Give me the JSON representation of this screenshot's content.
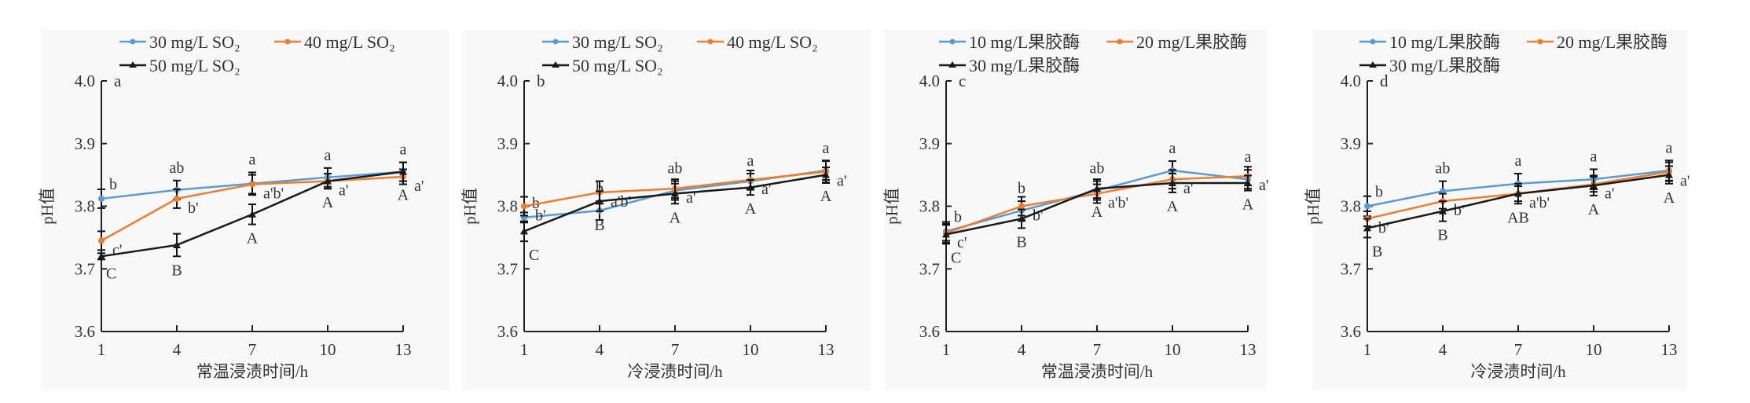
{
  "colors": {
    "series1": "#5b9bd5",
    "series2": "#ed7d31",
    "series3": "#1a1a1a",
    "axis": "#222222",
    "panel_bg": "#f8f8f8"
  },
  "chart_data": [
    {
      "type": "line",
      "panel_label": "a",
      "xlabel": "常温浸渍时间/h",
      "ylabel": "pH值",
      "x": [
        1,
        4,
        7,
        10,
        13
      ],
      "xticks": [
        "1",
        "4",
        "7",
        "10",
        "13"
      ],
      "yticks": [
        "3.6",
        "3.7",
        "3.8",
        "3.9",
        "4.0"
      ],
      "ylim": [
        3.6,
        4.0
      ],
      "legend": "top",
      "series": [
        {
          "name": "30 mg/L SO₂",
          "values": [
            3.812,
            3.826,
            3.836,
            3.846,
            3.855
          ],
          "error": [
            0.015,
            0.015,
            0.018,
            0.015,
            0.015
          ],
          "labels": [
            "b",
            "ab",
            "a",
            "a",
            "a"
          ]
        },
        {
          "name": "40 mg/L SO₂",
          "values": [
            3.745,
            3.812,
            3.835,
            3.84,
            3.847
          ],
          "error": [
            0.015,
            0.015,
            0.015,
            0.012,
            0.012
          ],
          "labels": [
            "c'",
            "b'",
            "a'b'",
            "a'",
            "a'"
          ]
        },
        {
          "name": "50 mg/L SO₂",
          "values": [
            3.72,
            3.738,
            3.787,
            3.84,
            3.855
          ],
          "error": [
            0.005,
            0.018,
            0.016,
            0.012,
            0.015
          ],
          "labels": [
            "C",
            "B",
            "A",
            "A",
            "A"
          ]
        }
      ]
    },
    {
      "type": "line",
      "panel_label": "b",
      "xlabel": "冷浸渍时间/h",
      "ylabel": "pH值",
      "x": [
        1,
        4,
        7,
        10,
        13
      ],
      "xticks": [
        "1",
        "4",
        "7",
        "10",
        "13"
      ],
      "yticks": [
        "3.6",
        "3.7",
        "3.8",
        "3.9",
        "4.0"
      ],
      "ylim": [
        3.6,
        4.0
      ],
      "legend": "top",
      "series": [
        {
          "name": "30 mg/L SO₂",
          "values": [
            3.782,
            3.793,
            3.825,
            3.84,
            3.857
          ],
          "error": [
            0.008,
            0.015,
            0.015,
            0.012,
            0.015
          ],
          "labels": [
            "b",
            "b",
            "ab",
            "a",
            "a"
          ]
        },
        {
          "name": "40 mg/L SO₂",
          "values": [
            3.8,
            3.822,
            3.828,
            3.842,
            3.855
          ],
          "error": [
            0.015,
            0.018,
            0.015,
            0.015,
            0.018
          ],
          "labels": [
            "b'",
            "a'b'",
            "a'",
            "a'",
            "a'"
          ]
        },
        {
          "name": "50 mg/L SO₂",
          "values": [
            3.76,
            3.808,
            3.82,
            3.83,
            3.85
          ],
          "error": [
            0.016,
            0.016,
            0.016,
            0.012,
            0.012
          ],
          "labels": [
            "C",
            "B",
            "A",
            "A",
            "A"
          ]
        }
      ]
    },
    {
      "type": "line",
      "panel_label": "c",
      "xlabel": "常温浸渍时间/h",
      "ylabel": "pH值",
      "x": [
        1,
        4,
        7,
        10,
        13
      ],
      "xticks": [
        "1",
        "4",
        "7",
        "10",
        "13"
      ],
      "yticks": [
        "3.6",
        "3.7",
        "3.8",
        "3.9",
        "4.0"
      ],
      "ylim": [
        3.6,
        4.0
      ],
      "legend": "top",
      "series": [
        {
          "name": "10 mg/L果胶酶",
          "values": [
            3.76,
            3.793,
            3.825,
            3.857,
            3.843
          ],
          "error": [
            0.015,
            0.015,
            0.015,
            0.015,
            0.015
          ],
          "labels": [
            "b",
            "b",
            "ab",
            "a",
            "a"
          ]
        },
        {
          "name": "20 mg/L果胶酶",
          "values": [
            3.757,
            3.8,
            3.82,
            3.843,
            3.848
          ],
          "error": [
            0.015,
            0.015,
            0.015,
            0.015,
            0.015
          ],
          "labels": [
            "c'",
            "b'",
            "a'b'",
            "a'",
            "a'"
          ]
        },
        {
          "name": "30 mg/L果胶酶",
          "values": [
            3.755,
            3.78,
            3.828,
            3.837,
            3.837
          ],
          "error": [
            0.015,
            0.015,
            0.015,
            0.015,
            0.012
          ],
          "labels": [
            "C",
            "B",
            "A",
            "A",
            "A"
          ]
        }
      ]
    },
    {
      "type": "line",
      "panel_label": "d",
      "xlabel": "冷浸渍时间/h",
      "ylabel": "pH值",
      "x": [
        1,
        4,
        7,
        10,
        13
      ],
      "xticks": [
        "1",
        "4",
        "7",
        "10",
        "13"
      ],
      "yticks": [
        "3.6",
        "3.7",
        "3.8",
        "3.9",
        "4.0"
      ],
      "ylim": [
        3.6,
        4.0
      ],
      "legend": "top",
      "series": [
        {
          "name": "10 mg/L果胶酶",
          "values": [
            3.8,
            3.824,
            3.836,
            3.843,
            3.857
          ],
          "error": [
            0.016,
            0.016,
            0.016,
            0.016,
            0.016
          ],
          "labels": [
            "b",
            "ab",
            "a",
            "a",
            "a"
          ]
        },
        {
          "name": "20 mg/L果胶酶",
          "values": [
            3.78,
            3.808,
            3.82,
            3.835,
            3.855
          ],
          "error": [
            0.012,
            0.012,
            0.012,
            0.012,
            0.015
          ],
          "labels": [
            "b'",
            "b'",
            "a'b'",
            "a'",
            "a'"
          ]
        },
        {
          "name": "30 mg/L果胶酶",
          "values": [
            3.765,
            3.792,
            3.82,
            3.833,
            3.85
          ],
          "error": [
            0.015,
            0.016,
            0.016,
            0.016,
            0.014
          ],
          "labels": [
            "B",
            "B",
            "AB",
            "A",
            "A"
          ]
        }
      ]
    }
  ]
}
